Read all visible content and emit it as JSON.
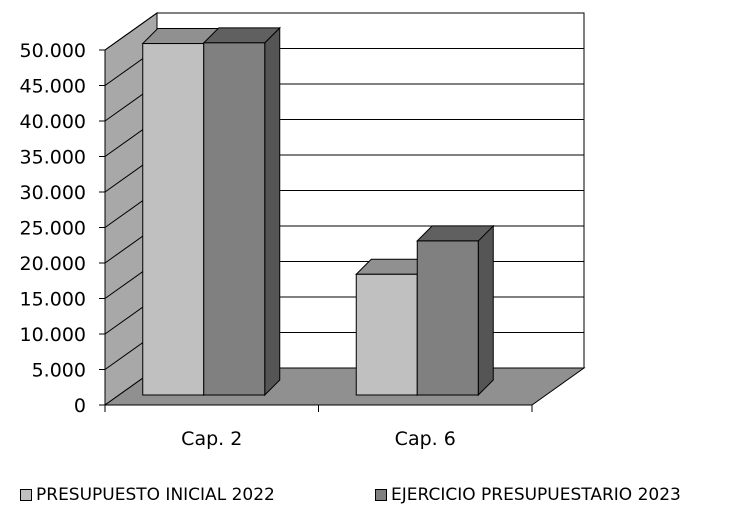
{
  "chart_data": {
    "type": "bar",
    "title": "",
    "xlabel": "",
    "ylabel": "",
    "categories": [
      "Cap. 2",
      "Cap. 6"
    ],
    "series": [
      {
        "name": "PRESUPUESTO INICIAL 2022",
        "values": [
          49500,
          17000
        ]
      },
      {
        "name": "EJERCICIO PRESUPUESTARIO 2023",
        "values": [
          49600,
          21700
        ]
      }
    ],
    "ylim": [
      0,
      50000
    ],
    "yticks": [
      "0",
      "5.000",
      "10.000",
      "15.000",
      "20.000",
      "25.000",
      "30.000",
      "35.000",
      "40.000",
      "45.000",
      "50.000"
    ],
    "grid": true,
    "legend_position": "bottom",
    "three_d": true,
    "colors": {
      "series": [
        "#c0c0c0",
        "#808080"
      ],
      "series_side": [
        "#7c7c7c",
        "#555555"
      ],
      "series_top": [
        "#909090",
        "#606060"
      ],
      "wall_left": "#a8a8a8",
      "floor": "#909090"
    }
  }
}
